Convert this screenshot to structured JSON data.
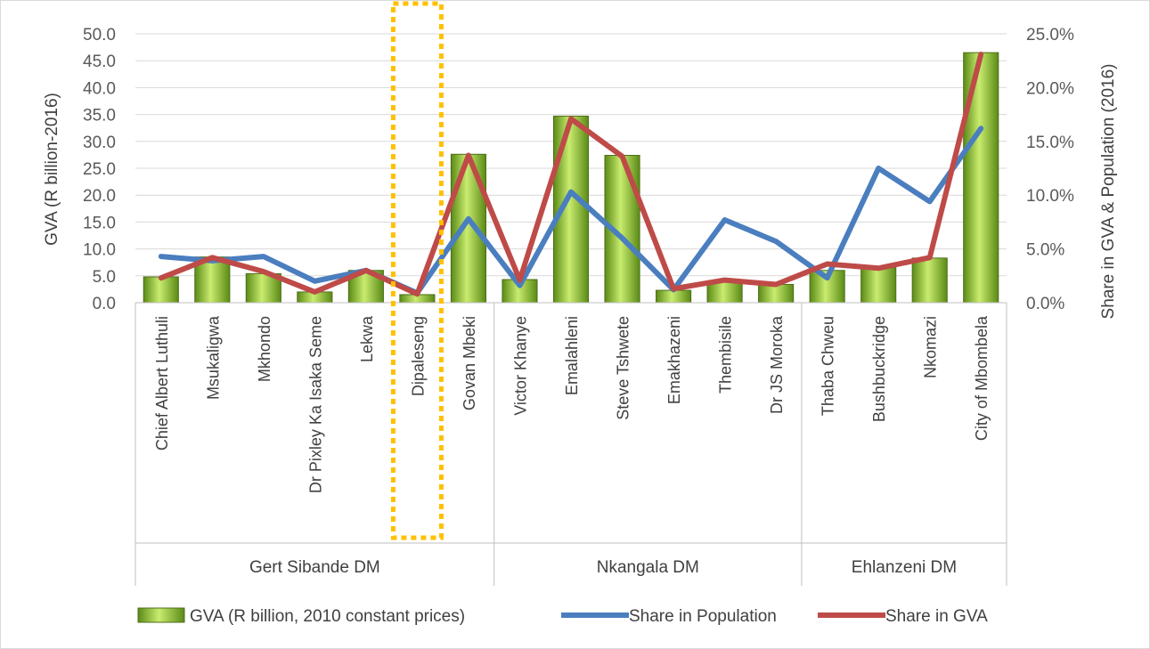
{
  "chart_data": {
    "type": "bar",
    "categories": [
      "Chief Albert Luthuli",
      "Msukaligwa",
      "Mkhondo",
      "Dr Pixley Ka Isaka Seme",
      "Lekwa",
      "Dipaleseng",
      "Govan Mbeki",
      "Victor Khanye",
      "Emalahleni",
      "Steve Tshwete",
      "Emakhazeni",
      "Thembisile",
      "Dr JS Moroka",
      "Thaba Chweu",
      "Bushbuckridge",
      "Nkomazi",
      "City of Mbombela"
    ],
    "groups": [
      {
        "label": "Gert Sibande DM",
        "start": 0,
        "end": 6
      },
      {
        "label": "Nkangala DM",
        "start": 7,
        "end": 12
      },
      {
        "label": "Ehlanzeni DM",
        "start": 13,
        "end": 16
      }
    ],
    "series": [
      {
        "name": "GVA (R billion, 2010 constant prices)",
        "kind": "bar",
        "axis": "left",
        "color": "#8dc63f",
        "values": [
          4.8,
          8.5,
          5.4,
          2.0,
          6.0,
          1.5,
          27.6,
          4.3,
          34.7,
          27.4,
          2.3,
          3.9,
          3.4,
          6.0,
          6.6,
          8.3,
          46.5
        ]
      },
      {
        "name": "Share in Population",
        "kind": "line",
        "axis": "right",
        "color": "#4a7ebf",
        "values": [
          4.3,
          3.9,
          4.3,
          2.0,
          3.0,
          0.9,
          7.8,
          1.6,
          10.3,
          6.0,
          1.2,
          7.7,
          5.7,
          2.3,
          12.5,
          9.4,
          16.2
        ]
      },
      {
        "name": "Share in GVA",
        "kind": "line",
        "axis": "right",
        "color": "#be4b48",
        "values": [
          2.3,
          4.2,
          2.9,
          1.0,
          3.0,
          0.8,
          13.7,
          2.1,
          17.1,
          13.6,
          1.3,
          2.1,
          1.7,
          3.6,
          3.2,
          4.2,
          23.1
        ]
      }
    ],
    "y_left": {
      "label": "GVA (R billion-2016)",
      "ylim": [
        0,
        50
      ],
      "ticks": [
        "0.0",
        "5.0",
        "10.0",
        "15.0",
        "20.0",
        "25.0",
        "30.0",
        "35.0",
        "40.0",
        "45.0",
        "50.0"
      ]
    },
    "y_right": {
      "label": "Share in GVA & Population (2016)",
      "ylim": [
        0,
        25
      ],
      "ticks": [
        "0.0%",
        "5.0%",
        "10.0%",
        "15.0%",
        "20.0%",
        "25.0%"
      ]
    },
    "grid": true,
    "legend": "bottom",
    "highlight": {
      "category": "Dipaleseng",
      "style": "dotted-box",
      "color": "#ffc000"
    }
  }
}
